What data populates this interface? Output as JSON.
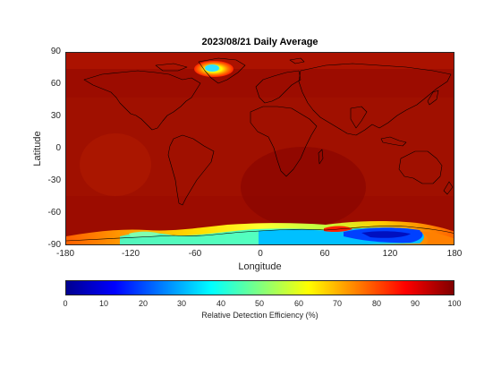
{
  "title": "2023/08/21 Daily Average",
  "axes": {
    "xlabel": "Longitude",
    "ylabel": "Latitude",
    "xticks": [
      "-180",
      "-120",
      "-60",
      "0",
      "60",
      "120",
      "180"
    ],
    "yticks": [
      "90",
      "60",
      "30",
      "0",
      "-30",
      "-60",
      "-90"
    ],
    "xlim": [
      -180,
      180
    ],
    "ylim": [
      -90,
      90
    ]
  },
  "colorbar": {
    "label": "Relative Detection Efficiency (%)",
    "ticks": [
      "0",
      "10",
      "20",
      "30",
      "40",
      "50",
      "60",
      "70",
      "80",
      "90",
      "100"
    ],
    "range": [
      0,
      100
    ],
    "colormap": "jet"
  },
  "colors": {
    "background_field": "#9a0a00",
    "coastline": "#000000"
  }
}
